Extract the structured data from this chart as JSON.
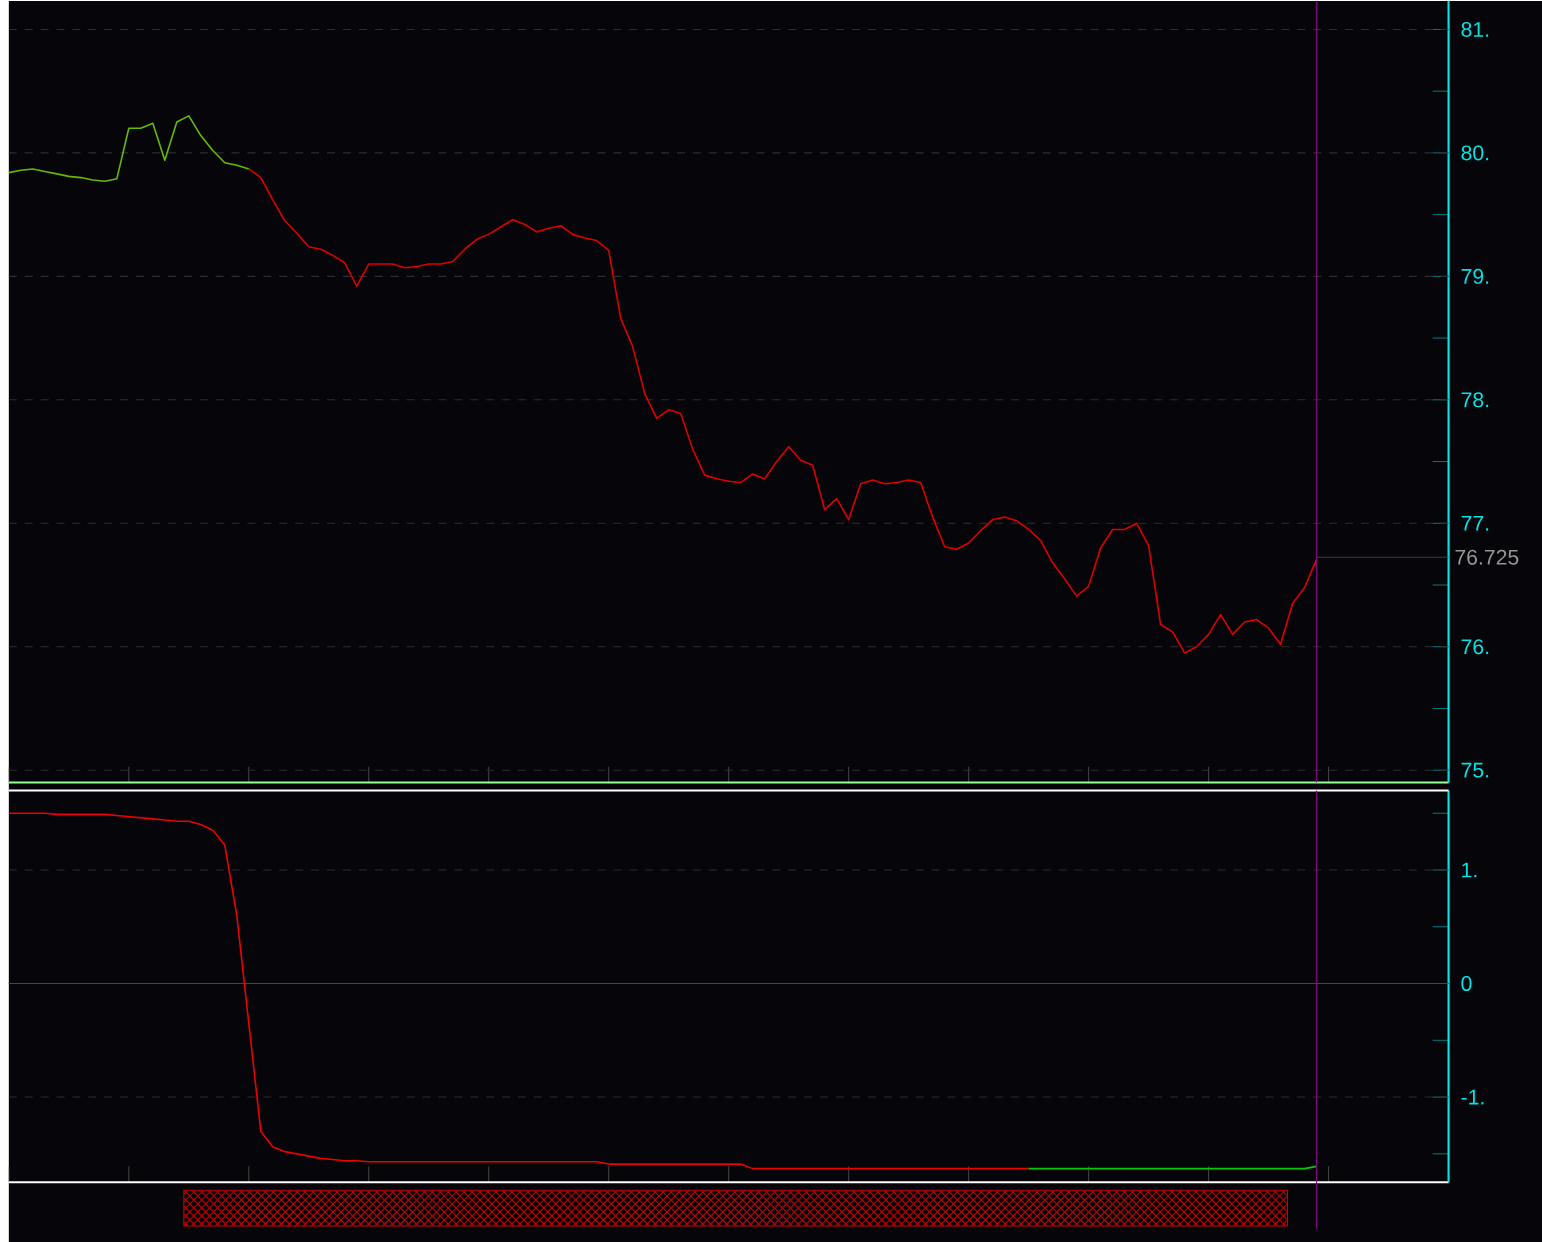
{
  "chart_data": [
    {
      "type": "line",
      "tick_labels": "y",
      "grid": "y",
      "categories": [
        null,
        null,
        null,
        null,
        null,
        null,
        null,
        null,
        null,
        null,
        null,
        null,
        null,
        null,
        null,
        null,
        null,
        null,
        null,
        null,
        null,
        null,
        null,
        null,
        null,
        null,
        null,
        null,
        null,
        null,
        null,
        null,
        null,
        null,
        null,
        null,
        null,
        null,
        null,
        null,
        null,
        null,
        null,
        null,
        null,
        null,
        null,
        null,
        null,
        null,
        null,
        null,
        null,
        null,
        null,
        null,
        null,
        null,
        null,
        null,
        null,
        null,
        null,
        null,
        null,
        null,
        null,
        null,
        null,
        null,
        null,
        null,
        null,
        null,
        null,
        null,
        null,
        null,
        null,
        null,
        null,
        null,
        null,
        null,
        null,
        null,
        null,
        null,
        null,
        null,
        null,
        null,
        null,
        null,
        null,
        null,
        null,
        null,
        null,
        null,
        null,
        null,
        null,
        null,
        null,
        null,
        null,
        null,
        null,
        null,
        null,
        null,
        null,
        null,
        null,
        null,
        null,
        null,
        null,
        null,
        null
      ],
      "ylim": [
        74.9,
        81.23
      ],
      "yticks": [
        {
          "value": 75,
          "label": "75."
        },
        {
          "value": 75.5,
          "label": null
        },
        {
          "value": 76,
          "label": "76."
        },
        {
          "value": 76.5,
          "label": null
        },
        {
          "value": 77,
          "label": "77."
        },
        {
          "value": 77.5,
          "label": null
        },
        {
          "value": 78,
          "label": "78."
        },
        {
          "value": 78.5,
          "label": null
        },
        {
          "value": 79,
          "label": "79."
        },
        {
          "value": 79.5,
          "label": null
        },
        {
          "value": 80,
          "label": "80."
        },
        {
          "value": 80.5,
          "label": null
        },
        {
          "value": 81,
          "label": "81."
        }
      ],
      "series": [
        {
          "color": "#66bb00",
          "values": [
            79.84,
            79.86,
            79.87,
            79.85,
            79.83,
            79.81,
            79.8,
            79.78,
            79.77,
            79.79,
            80.2,
            80.2,
            80.24,
            79.94,
            80.25,
            80.3,
            80.14,
            80.02,
            79.92,
            79.9,
            79.87,
            null,
            null,
            null,
            null,
            null,
            null,
            null,
            null,
            null,
            null,
            null,
            null,
            null,
            null,
            null,
            null,
            null,
            null,
            null,
            null,
            null,
            null,
            null,
            null,
            null,
            null,
            null,
            null,
            null,
            null,
            null,
            null,
            null,
            null,
            null,
            null,
            null,
            null,
            null,
            null,
            null,
            null,
            null,
            null,
            null,
            null,
            null,
            null,
            null,
            null,
            null,
            null,
            null,
            null,
            null,
            null,
            null,
            null,
            null,
            null,
            null,
            null,
            null,
            null,
            null,
            null,
            null,
            null,
            null,
            null,
            null,
            null,
            null,
            null,
            null,
            null,
            null,
            null,
            null,
            null,
            null,
            null,
            null,
            null,
            null,
            null,
            null,
            null,
            null,
            null,
            null,
            null,
            null,
            null,
            null,
            null,
            null,
            null,
            null,
            null
          ]
        },
        {
          "color": "#dd0000",
          "values": [
            null,
            null,
            null,
            null,
            null,
            null,
            null,
            null,
            null,
            null,
            null,
            null,
            null,
            null,
            null,
            null,
            null,
            null,
            null,
            null,
            79.87,
            79.8,
            79.62,
            79.45,
            79.35,
            79.24,
            79.22,
            79.17,
            79.11,
            78.92,
            79.1,
            79.1,
            79.1,
            79.07,
            79.08,
            79.1,
            79.1,
            79.12,
            79.22,
            79.3,
            79.34,
            79.4,
            79.46,
            79.42,
            79.36,
            79.39,
            79.41,
            79.34,
            79.31,
            79.29,
            79.21,
            78.66,
            78.43,
            78.05,
            77.85,
            77.92,
            77.89,
            77.6,
            77.39,
            77.36,
            77.34,
            77.33,
            77.4,
            77.36,
            77.5,
            77.62,
            77.51,
            77.47,
            77.11,
            77.2,
            77.03,
            77.32,
            77.35,
            77.32,
            77.33,
            77.35,
            77.33,
            77.05,
            76.81,
            76.79,
            76.84,
            76.94,
            77.03,
            77.05,
            77.02,
            76.95,
            76.86,
            76.68,
            76.55,
            76.41,
            76.49,
            76.8,
            76.95,
            76.95,
            77.0,
            76.82,
            76.18,
            76.12,
            75.95,
            76.0,
            76.1,
            76.26,
            76.1,
            76.2,
            76.22,
            76.15,
            76.02,
            76.35,
            76.48,
            76.71,
            null,
            null,
            null,
            null,
            null,
            null,
            null,
            null,
            null,
            null,
            null
          ]
        }
      ],
      "ref_lines": [
        {
          "axis": "y",
          "value": 76.725,
          "label": "76.725",
          "color": "#3c3c3c"
        }
      ]
    },
    {
      "type": "line",
      "tick_labels": "y",
      "grid": "y",
      "categories": [
        null,
        null,
        null,
        null,
        null,
        null,
        null,
        null,
        null,
        null,
        null,
        null,
        null,
        null,
        null,
        null,
        null,
        null,
        null,
        null,
        null,
        null,
        null,
        null,
        null,
        null,
        null,
        null,
        null,
        null,
        null,
        null,
        null,
        null,
        null,
        null,
        null,
        null,
        null,
        null,
        null,
        null,
        null,
        null,
        null,
        null,
        null,
        null,
        null,
        null,
        null,
        null,
        null,
        null,
        null,
        null,
        null,
        null,
        null,
        null,
        null,
        null,
        null,
        null,
        null,
        null,
        null,
        null,
        null,
        null,
        null,
        null,
        null,
        null,
        null,
        null,
        null,
        null,
        null,
        null,
        null,
        null,
        null,
        null,
        null,
        null,
        null,
        null,
        null,
        null,
        null,
        null,
        null,
        null,
        null,
        null,
        null,
        null,
        null,
        null,
        null,
        null,
        null,
        null,
        null,
        null,
        null,
        null,
        null,
        null,
        null,
        null,
        null,
        null,
        null,
        null,
        null,
        null,
        null,
        null,
        null
      ],
      "ylim": [
        -1.75,
        1.7
      ],
      "yticks": [
        {
          "value": -1.5,
          "label": null
        },
        {
          "value": -1,
          "label": "-1."
        },
        {
          "value": -0.5,
          "label": null
        },
        {
          "value": 0,
          "label": "0"
        },
        {
          "value": 0.5,
          "label": null
        },
        {
          "value": 1,
          "label": "1."
        },
        {
          "value": 1.5,
          "label": null
        }
      ],
      "series": [
        {
          "color": "#ee0000",
          "values": [
            1.5,
            1.5,
            1.5,
            1.5,
            1.49,
            1.49,
            1.49,
            1.49,
            1.49,
            1.48,
            1.47,
            1.46,
            1.45,
            1.44,
            1.43,
            1.43,
            1.4,
            1.35,
            1.22,
            0.6,
            -0.35,
            -1.3,
            -1.44,
            -1.48,
            -1.5,
            -1.52,
            -1.54,
            -1.55,
            -1.56,
            -1.56,
            -1.57,
            -1.57,
            -1.57,
            -1.57,
            -1.57,
            -1.57,
            -1.57,
            -1.57,
            -1.57,
            -1.57,
            -1.57,
            -1.57,
            -1.57,
            -1.57,
            -1.57,
            -1.57,
            -1.57,
            -1.57,
            -1.57,
            -1.57,
            -1.59,
            -1.59,
            -1.59,
            -1.59,
            -1.59,
            -1.59,
            -1.59,
            -1.59,
            -1.59,
            -1.59,
            -1.59,
            -1.59,
            -1.63,
            -1.63,
            -1.63,
            -1.63,
            -1.63,
            -1.63,
            -1.63,
            -1.63,
            -1.63,
            -1.63,
            -1.63,
            -1.63,
            -1.63,
            -1.63,
            -1.63,
            -1.63,
            -1.63,
            -1.63,
            -1.63,
            -1.63,
            -1.63,
            -1.63,
            -1.63,
            -1.63,
            null,
            null,
            null,
            null,
            null,
            null,
            null,
            null,
            null,
            null,
            null,
            null,
            null,
            null,
            null,
            null,
            null,
            null,
            null,
            null,
            null,
            null,
            null,
            null,
            null,
            null,
            null,
            null,
            null,
            null,
            null,
            null,
            null,
            null,
            null
          ]
        },
        {
          "color": "#00cc00",
          "values": [
            null,
            null,
            null,
            null,
            null,
            null,
            null,
            null,
            null,
            null,
            null,
            null,
            null,
            null,
            null,
            null,
            null,
            null,
            null,
            null,
            null,
            null,
            null,
            null,
            null,
            null,
            null,
            null,
            null,
            null,
            null,
            null,
            null,
            null,
            null,
            null,
            null,
            null,
            null,
            null,
            null,
            null,
            null,
            null,
            null,
            null,
            null,
            null,
            null,
            null,
            null,
            null,
            null,
            null,
            null,
            null,
            null,
            null,
            null,
            null,
            null,
            null,
            null,
            null,
            null,
            null,
            null,
            null,
            null,
            null,
            null,
            null,
            null,
            null,
            null,
            null,
            null,
            null,
            null,
            null,
            null,
            null,
            null,
            null,
            null,
            -1.63,
            -1.63,
            -1.63,
            -1.63,
            -1.63,
            -1.63,
            -1.63,
            -1.63,
            -1.63,
            -1.63,
            -1.63,
            -1.63,
            -1.63,
            -1.63,
            -1.63,
            -1.63,
            -1.63,
            -1.63,
            -1.63,
            -1.63,
            -1.63,
            -1.63,
            -1.63,
            -1.63,
            -1.61,
            null,
            null,
            null,
            null,
            null,
            null,
            null,
            null,
            null,
            null,
            null
          ]
        }
      ],
      "ref_lines": [
        {
          "axis": "y",
          "value": 0,
          "color": "#007700"
        }
      ]
    }
  ]
}
